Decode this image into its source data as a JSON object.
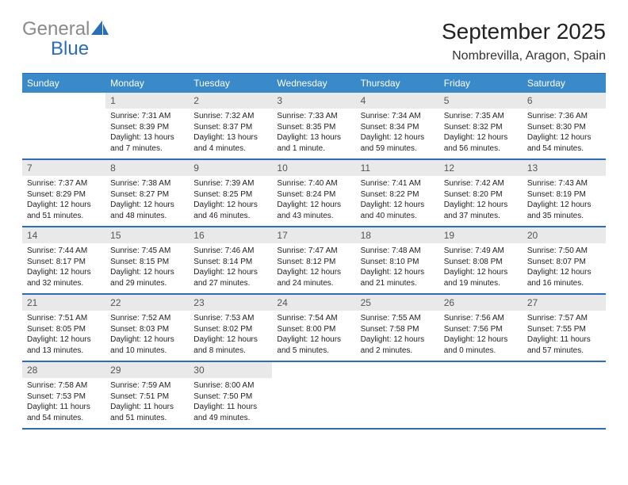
{
  "brand": {
    "word1": "General",
    "word2": "Blue",
    "word1_color": "#8a8a8a",
    "word2_color": "#2a6db8",
    "icon_color": "#2a6db8"
  },
  "title": "September 2025",
  "location": "Nombrevilla, Aragon, Spain",
  "day_headers": [
    "Sunday",
    "Monday",
    "Tuesday",
    "Wednesday",
    "Thursday",
    "Friday",
    "Saturday"
  ],
  "header_bg": "#3a89c9",
  "header_text_color": "#ffffff",
  "border_color": "#2a6db8",
  "daynum_bg": "#e9e9e9",
  "weeks": [
    [
      {
        "day": "",
        "lines": []
      },
      {
        "day": "1",
        "lines": [
          "Sunrise: 7:31 AM",
          "Sunset: 8:39 PM",
          "Daylight: 13 hours",
          "and 7 minutes."
        ]
      },
      {
        "day": "2",
        "lines": [
          "Sunrise: 7:32 AM",
          "Sunset: 8:37 PM",
          "Daylight: 13 hours",
          "and 4 minutes."
        ]
      },
      {
        "day": "3",
        "lines": [
          "Sunrise: 7:33 AM",
          "Sunset: 8:35 PM",
          "Daylight: 13 hours",
          "and 1 minute."
        ]
      },
      {
        "day": "4",
        "lines": [
          "Sunrise: 7:34 AM",
          "Sunset: 8:34 PM",
          "Daylight: 12 hours",
          "and 59 minutes."
        ]
      },
      {
        "day": "5",
        "lines": [
          "Sunrise: 7:35 AM",
          "Sunset: 8:32 PM",
          "Daylight: 12 hours",
          "and 56 minutes."
        ]
      },
      {
        "day": "6",
        "lines": [
          "Sunrise: 7:36 AM",
          "Sunset: 8:30 PM",
          "Daylight: 12 hours",
          "and 54 minutes."
        ]
      }
    ],
    [
      {
        "day": "7",
        "lines": [
          "Sunrise: 7:37 AM",
          "Sunset: 8:29 PM",
          "Daylight: 12 hours",
          "and 51 minutes."
        ]
      },
      {
        "day": "8",
        "lines": [
          "Sunrise: 7:38 AM",
          "Sunset: 8:27 PM",
          "Daylight: 12 hours",
          "and 48 minutes."
        ]
      },
      {
        "day": "9",
        "lines": [
          "Sunrise: 7:39 AM",
          "Sunset: 8:25 PM",
          "Daylight: 12 hours",
          "and 46 minutes."
        ]
      },
      {
        "day": "10",
        "lines": [
          "Sunrise: 7:40 AM",
          "Sunset: 8:24 PM",
          "Daylight: 12 hours",
          "and 43 minutes."
        ]
      },
      {
        "day": "11",
        "lines": [
          "Sunrise: 7:41 AM",
          "Sunset: 8:22 PM",
          "Daylight: 12 hours",
          "and 40 minutes."
        ]
      },
      {
        "day": "12",
        "lines": [
          "Sunrise: 7:42 AM",
          "Sunset: 8:20 PM",
          "Daylight: 12 hours",
          "and 37 minutes."
        ]
      },
      {
        "day": "13",
        "lines": [
          "Sunrise: 7:43 AM",
          "Sunset: 8:19 PM",
          "Daylight: 12 hours",
          "and 35 minutes."
        ]
      }
    ],
    [
      {
        "day": "14",
        "lines": [
          "Sunrise: 7:44 AM",
          "Sunset: 8:17 PM",
          "Daylight: 12 hours",
          "and 32 minutes."
        ]
      },
      {
        "day": "15",
        "lines": [
          "Sunrise: 7:45 AM",
          "Sunset: 8:15 PM",
          "Daylight: 12 hours",
          "and 29 minutes."
        ]
      },
      {
        "day": "16",
        "lines": [
          "Sunrise: 7:46 AM",
          "Sunset: 8:14 PM",
          "Daylight: 12 hours",
          "and 27 minutes."
        ]
      },
      {
        "day": "17",
        "lines": [
          "Sunrise: 7:47 AM",
          "Sunset: 8:12 PM",
          "Daylight: 12 hours",
          "and 24 minutes."
        ]
      },
      {
        "day": "18",
        "lines": [
          "Sunrise: 7:48 AM",
          "Sunset: 8:10 PM",
          "Daylight: 12 hours",
          "and 21 minutes."
        ]
      },
      {
        "day": "19",
        "lines": [
          "Sunrise: 7:49 AM",
          "Sunset: 8:08 PM",
          "Daylight: 12 hours",
          "and 19 minutes."
        ]
      },
      {
        "day": "20",
        "lines": [
          "Sunrise: 7:50 AM",
          "Sunset: 8:07 PM",
          "Daylight: 12 hours",
          "and 16 minutes."
        ]
      }
    ],
    [
      {
        "day": "21",
        "lines": [
          "Sunrise: 7:51 AM",
          "Sunset: 8:05 PM",
          "Daylight: 12 hours",
          "and 13 minutes."
        ]
      },
      {
        "day": "22",
        "lines": [
          "Sunrise: 7:52 AM",
          "Sunset: 8:03 PM",
          "Daylight: 12 hours",
          "and 10 minutes."
        ]
      },
      {
        "day": "23",
        "lines": [
          "Sunrise: 7:53 AM",
          "Sunset: 8:02 PM",
          "Daylight: 12 hours",
          "and 8 minutes."
        ]
      },
      {
        "day": "24",
        "lines": [
          "Sunrise: 7:54 AM",
          "Sunset: 8:00 PM",
          "Daylight: 12 hours",
          "and 5 minutes."
        ]
      },
      {
        "day": "25",
        "lines": [
          "Sunrise: 7:55 AM",
          "Sunset: 7:58 PM",
          "Daylight: 12 hours",
          "and 2 minutes."
        ]
      },
      {
        "day": "26",
        "lines": [
          "Sunrise: 7:56 AM",
          "Sunset: 7:56 PM",
          "Daylight: 12 hours",
          "and 0 minutes."
        ]
      },
      {
        "day": "27",
        "lines": [
          "Sunrise: 7:57 AM",
          "Sunset: 7:55 PM",
          "Daylight: 11 hours",
          "and 57 minutes."
        ]
      }
    ],
    [
      {
        "day": "28",
        "lines": [
          "Sunrise: 7:58 AM",
          "Sunset: 7:53 PM",
          "Daylight: 11 hours",
          "and 54 minutes."
        ]
      },
      {
        "day": "29",
        "lines": [
          "Sunrise: 7:59 AM",
          "Sunset: 7:51 PM",
          "Daylight: 11 hours",
          "and 51 minutes."
        ]
      },
      {
        "day": "30",
        "lines": [
          "Sunrise: 8:00 AM",
          "Sunset: 7:50 PM",
          "Daylight: 11 hours",
          "and 49 minutes."
        ]
      },
      {
        "day": "",
        "lines": []
      },
      {
        "day": "",
        "lines": []
      },
      {
        "day": "",
        "lines": []
      },
      {
        "day": "",
        "lines": []
      }
    ]
  ]
}
